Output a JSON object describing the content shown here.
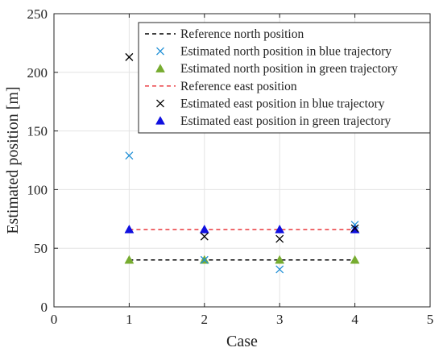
{
  "chart_data": {
    "type": "scatter",
    "xlabel": "Case",
    "ylabel": "Estimated position [m]",
    "xlim": [
      0,
      5
    ],
    "ylim": [
      0,
      250
    ],
    "xticks": [
      "0",
      "1",
      "2",
      "3",
      "4",
      "5"
    ],
    "yticks": [
      "0",
      "50",
      "100",
      "150",
      "200",
      "250"
    ],
    "grid": true,
    "legend_position": "top-right",
    "series": [
      {
        "name": "Reference north position",
        "kind": "line",
        "style": "dashed",
        "color": "#000000",
        "x": [
          1,
          4
        ],
        "y": [
          40,
          40
        ]
      },
      {
        "name": "Estimated north position in blue trajectory",
        "kind": "scatter",
        "marker": "x",
        "color": "#1f8fd6",
        "x": [
          1,
          2,
          3,
          4
        ],
        "y": [
          129,
          40,
          32,
          70
        ]
      },
      {
        "name": "Estimated north position in green trajectory",
        "kind": "scatter",
        "marker": "triangle",
        "color": "#77ac30",
        "x": [
          1,
          2,
          3,
          4
        ],
        "y": [
          40,
          40,
          40,
          40
        ]
      },
      {
        "name": "Reference east position",
        "kind": "line",
        "style": "dashed",
        "color": "#e8262b",
        "x": [
          1,
          4
        ],
        "y": [
          66,
          66
        ]
      },
      {
        "name": "Estimated east position in blue trajectory",
        "kind": "scatter",
        "marker": "x",
        "color": "#000000",
        "x": [
          1,
          2,
          3,
          4
        ],
        "y": [
          213,
          60,
          58,
          67
        ]
      },
      {
        "name": "Estimated east position in green trajectory",
        "kind": "scatter",
        "marker": "triangle",
        "color": "#1010e0",
        "x": [
          1,
          2,
          3,
          4
        ],
        "y": [
          66,
          66,
          66,
          66
        ]
      }
    ]
  }
}
